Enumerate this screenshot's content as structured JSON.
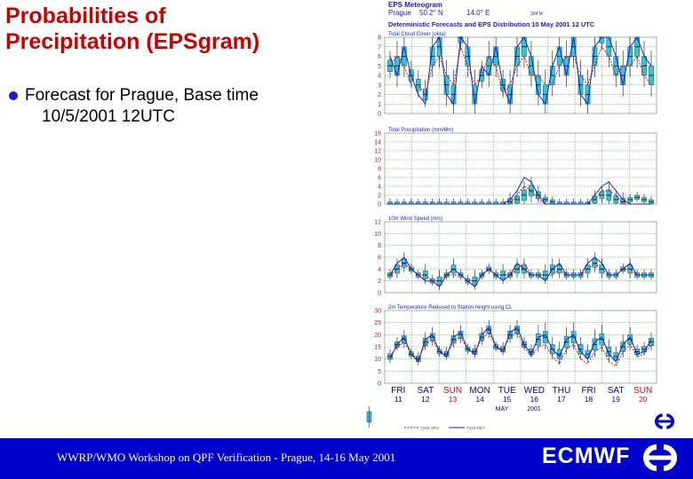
{
  "slide": {
    "title_line1": "Probabilities of",
    "title_line2": "Precipitation (EPSgram)",
    "bullet_line1": "Forecast for Prague,  Base time",
    "bullet_line2": "10/5/2001 12UTC",
    "footer": "WWRP/WMO Workshop on QPF Verification - Prague, 14-16 May 2001",
    "org": "ECMWF"
  },
  "colors": {
    "title": "#cc0000",
    "footer_bg": "#0000cc",
    "bullet": "#1a1ad4",
    "box_fill": "#29c8e0",
    "deterministic": "#1a1ad4",
    "control": "#cc0000",
    "weekend_red": "#dd0000",
    "weekday_blue": "#0000aa",
    "grid": "#22aa22"
  },
  "chart_data": [
    {
      "type": "line",
      "title": "Total Cloud Cover (okta)",
      "header_line1": "EPS Meteogram",
      "header_line2_place": "Prague",
      "header_line2_lat": "50.2° N",
      "header_line2_lon": "14.0° E",
      "header_line2_extra": "304 M",
      "header_line3": "Deterministic Forecasts and EPS Distribution 10 May 2001  12 UTC",
      "ylim": [
        0,
        8
      ],
      "yticks": [
        0,
        1,
        2,
        3,
        4,
        5,
        6,
        7,
        8
      ],
      "median": [
        5,
        5,
        6,
        4,
        3,
        2,
        6,
        7,
        3,
        2,
        8,
        6,
        2,
        4,
        5,
        6,
        3,
        2,
        6,
        7,
        5,
        3,
        2,
        4,
        6,
        5,
        7,
        3,
        2,
        6,
        8,
        7,
        5,
        4,
        6,
        7,
        5,
        4
      ],
      "deterministic": [
        6,
        4,
        7,
        4,
        2,
        1,
        7,
        8,
        2,
        1,
        8,
        7,
        1,
        5,
        4,
        7,
        3,
        1,
        7,
        8,
        6,
        2,
        1,
        5,
        7,
        4,
        8,
        2,
        1,
        7,
        8,
        8,
        6,
        3,
        7,
        8,
        6,
        5
      ],
      "control": [
        5,
        6,
        5,
        3,
        3,
        2,
        5,
        6,
        4,
        3,
        7,
        5,
        3,
        4,
        6,
        5,
        2,
        3,
        5,
        6,
        4,
        4,
        3,
        3,
        5,
        6,
        6,
        4,
        3,
        5,
        7,
        6,
        4,
        5,
        5,
        6,
        4,
        3
      ]
    },
    {
      "type": "line",
      "title": "Total Precipitation (mm/6hr)",
      "ylim": [
        0,
        16
      ],
      "yticks": [
        0,
        2,
        4,
        6,
        8,
        10,
        12,
        14,
        16
      ],
      "median": [
        0,
        0,
        0,
        0,
        0,
        0,
        0,
        0,
        0,
        0,
        0,
        0,
        0,
        0,
        0,
        0,
        0,
        0.5,
        1,
        2,
        3,
        2,
        1,
        0.5,
        0,
        0,
        0,
        0,
        0,
        1,
        2,
        2,
        1,
        0.5,
        1,
        1.5,
        1,
        0.5
      ],
      "deterministic": [
        0,
        0,
        0,
        0,
        0,
        0,
        0,
        0,
        0,
        0,
        0,
        0,
        0,
        0,
        0,
        0,
        0,
        1,
        3,
        6,
        5,
        2,
        0,
        0,
        0,
        0,
        0,
        0,
        0,
        2,
        4,
        5,
        3,
        1,
        0,
        0,
        0,
        0
      ],
      "control": [
        0,
        0,
        0,
        0,
        0,
        0,
        0,
        0,
        0,
        0,
        0,
        0,
        0,
        0,
        0,
        0,
        0,
        0,
        2,
        4,
        3,
        1,
        0,
        0,
        0,
        0,
        0,
        0,
        0,
        1,
        3,
        3,
        2,
        0,
        0,
        0,
        0,
        0
      ]
    },
    {
      "type": "line",
      "title": "10m Wind Speed (m/s)",
      "ylim": [
        0,
        12
      ],
      "yticks": [
        0,
        2,
        4,
        6,
        8,
        10,
        12
      ],
      "median": [
        3,
        4,
        5,
        4,
        3,
        3,
        2,
        2,
        3,
        4,
        3,
        2,
        2,
        3,
        4,
        3,
        3,
        3,
        4,
        4,
        3,
        3,
        3,
        4,
        4,
        3,
        3,
        3,
        4,
        5,
        4,
        3,
        3,
        4,
        4,
        3,
        3,
        3
      ],
      "deterministic": [
        3,
        5,
        6,
        4,
        3,
        2,
        2,
        1,
        3,
        4,
        3,
        2,
        1,
        3,
        4,
        3,
        2,
        3,
        5,
        4,
        3,
        3,
        2,
        4,
        5,
        3,
        3,
        3,
        5,
        6,
        5,
        3,
        3,
        4,
        5,
        3,
        3,
        3
      ],
      "control": [
        3,
        4,
        5,
        4,
        3,
        3,
        2,
        2,
        3,
        3,
        3,
        2,
        2,
        3,
        4,
        3,
        3,
        3,
        4,
        5,
        3,
        3,
        3,
        3,
        4,
        3,
        3,
        3,
        4,
        5,
        4,
        3,
        3,
        4,
        4,
        3,
        3,
        3
      ]
    },
    {
      "type": "line",
      "title": "2m Temperature Reduced to Station height using CL",
      "ylim": [
        0,
        30
      ],
      "yticks": [
        0,
        5,
        10,
        15,
        20,
        25,
        30
      ],
      "median": [
        11,
        16,
        18,
        12,
        10,
        17,
        19,
        13,
        12,
        18,
        20,
        14,
        13,
        19,
        22,
        15,
        14,
        20,
        22,
        16,
        13,
        18,
        19,
        14,
        12,
        17,
        19,
        14,
        12,
        16,
        18,
        13,
        11,
        15,
        18,
        13,
        14,
        17
      ],
      "deterministic": [
        10,
        16,
        19,
        12,
        9,
        18,
        20,
        13,
        11,
        19,
        21,
        14,
        12,
        20,
        23,
        15,
        13,
        21,
        23,
        16,
        12,
        19,
        20,
        14,
        11,
        18,
        20,
        13,
        10,
        17,
        19,
        12,
        9,
        16,
        19,
        12,
        13,
        18
      ],
      "control": [
        11,
        15,
        17,
        12,
        10,
        16,
        18,
        13,
        12,
        17,
        19,
        14,
        13,
        18,
        21,
        15,
        14,
        19,
        21,
        15,
        11,
        15,
        16,
        11,
        8,
        14,
        16,
        10,
        8,
        13,
        15,
        9,
        7,
        13,
        16,
        11,
        12,
        16
      ],
      "days": [
        "FRI",
        "SAT",
        "SUN",
        "MON",
        "TUE",
        "WED",
        "THU",
        "FRI",
        "SAT",
        "SUN"
      ],
      "dates": [
        "11",
        "12",
        "13",
        "14",
        "15",
        "16",
        "17",
        "18",
        "19",
        "20"
      ],
      "month_label": "MAY",
      "year_label": "2001",
      "legend_left": "T255 OPS",
      "legend_right": "T319 DET"
    }
  ]
}
